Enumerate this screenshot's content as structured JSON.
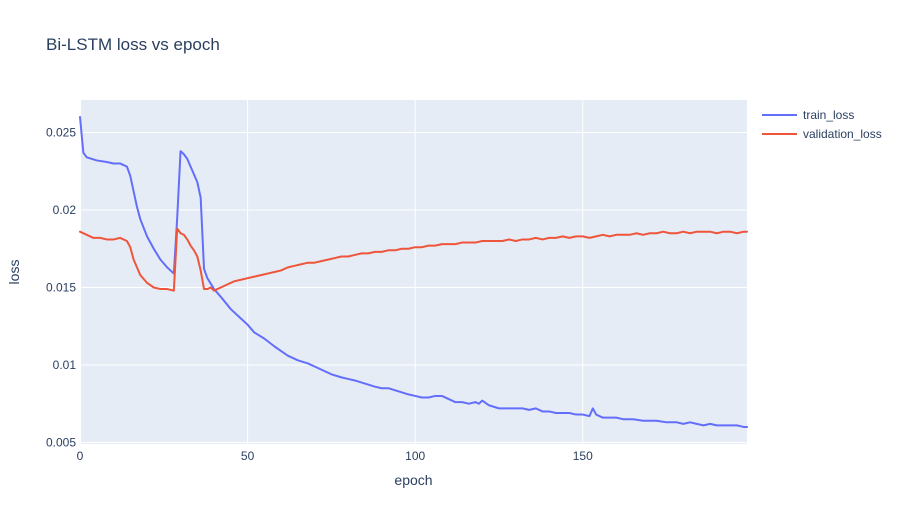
{
  "chart_data": {
    "type": "line",
    "title": "Bi-LSTM loss vs epoch",
    "xlabel": "epoch",
    "ylabel": "loss",
    "xlim": [
      0,
      199
    ],
    "ylim": [
      0.0049,
      0.0271
    ],
    "x_ticks": [
      0,
      50,
      100,
      150
    ],
    "x_tick_labels": [
      "0",
      "50",
      "100",
      "150"
    ],
    "y_ticks": [
      0.005,
      0.01,
      0.015,
      0.02,
      0.025
    ],
    "y_tick_labels": [
      "0.005",
      "0.01",
      "0.015",
      "0.02",
      "0.025"
    ],
    "grid": true,
    "legend_position": "top-right",
    "background": "#e5ecf6",
    "series": [
      {
        "name": "train_loss",
        "color": "#636efa",
        "x": [
          0,
          1,
          2,
          5,
          8,
          10,
          12,
          13,
          14,
          15,
          16,
          17,
          18,
          20,
          22,
          24,
          26,
          28,
          29,
          30,
          31,
          32,
          33,
          35,
          36,
          37,
          38,
          40,
          42,
          45,
          48,
          50,
          52,
          55,
          58,
          60,
          62,
          65,
          68,
          70,
          72,
          75,
          78,
          80,
          82,
          85,
          88,
          90,
          92,
          95,
          98,
          100,
          102,
          104,
          106,
          108,
          110,
          112,
          114,
          116,
          118,
          119,
          120,
          122,
          125,
          128,
          130,
          132,
          134,
          136,
          138,
          140,
          142,
          144,
          146,
          148,
          150,
          152,
          153,
          154,
          156,
          158,
          160,
          162,
          165,
          168,
          170,
          172,
          175,
          178,
          180,
          182,
          184,
          186,
          188,
          190,
          192,
          194,
          196,
          198,
          199
        ],
        "y": [
          0.026,
          0.0237,
          0.0234,
          0.0232,
          0.0231,
          0.023,
          0.023,
          0.0229,
          0.0228,
          0.0222,
          0.0212,
          0.0202,
          0.0194,
          0.0183,
          0.0175,
          0.0168,
          0.0163,
          0.0159,
          0.0195,
          0.0238,
          0.0236,
          0.0233,
          0.0228,
          0.0218,
          0.0208,
          0.0162,
          0.0156,
          0.0149,
          0.0144,
          0.0136,
          0.013,
          0.0126,
          0.0121,
          0.0117,
          0.0112,
          0.0109,
          0.0106,
          0.0103,
          0.0101,
          0.0099,
          0.0097,
          0.0094,
          0.0092,
          0.0091,
          0.009,
          0.0088,
          0.0086,
          0.0085,
          0.0085,
          0.0083,
          0.0081,
          0.008,
          0.0079,
          0.0079,
          0.008,
          0.008,
          0.0078,
          0.0076,
          0.0076,
          0.0075,
          0.0076,
          0.0075,
          0.0077,
          0.0074,
          0.0072,
          0.0072,
          0.0072,
          0.0072,
          0.0071,
          0.0072,
          0.007,
          0.007,
          0.0069,
          0.0069,
          0.0069,
          0.0068,
          0.0068,
          0.0067,
          0.0072,
          0.0068,
          0.0066,
          0.0066,
          0.0066,
          0.0065,
          0.0065,
          0.0064,
          0.0064,
          0.0064,
          0.0063,
          0.0063,
          0.0062,
          0.0063,
          0.0062,
          0.0061,
          0.0062,
          0.0061,
          0.0061,
          0.0061,
          0.0061,
          0.006,
          0.006
        ]
      },
      {
        "name": "validation_loss",
        "color": "#ef553b",
        "x": [
          0,
          2,
          4,
          6,
          8,
          10,
          12,
          14,
          15,
          16,
          17,
          18,
          20,
          22,
          24,
          26,
          28,
          29,
          30,
          31,
          32,
          33,
          34,
          35,
          36,
          37,
          38,
          39,
          40,
          42,
          44,
          46,
          48,
          50,
          52,
          54,
          56,
          58,
          60,
          62,
          64,
          66,
          68,
          70,
          72,
          74,
          76,
          78,
          80,
          82,
          84,
          86,
          88,
          90,
          92,
          94,
          96,
          98,
          100,
          102,
          104,
          106,
          108,
          110,
          112,
          114,
          116,
          118,
          120,
          122,
          124,
          126,
          128,
          130,
          132,
          134,
          136,
          138,
          140,
          142,
          144,
          146,
          148,
          150,
          152,
          154,
          156,
          158,
          160,
          162,
          164,
          166,
          168,
          170,
          172,
          174,
          176,
          178,
          180,
          182,
          184,
          186,
          188,
          190,
          192,
          194,
          196,
          198,
          199
        ],
        "y": [
          0.0186,
          0.0184,
          0.0182,
          0.0182,
          0.0181,
          0.0181,
          0.0182,
          0.018,
          0.0176,
          0.0168,
          0.0163,
          0.0158,
          0.0153,
          0.015,
          0.0149,
          0.0149,
          0.0148,
          0.0188,
          0.0185,
          0.0184,
          0.0181,
          0.0177,
          0.0174,
          0.017,
          0.0161,
          0.0149,
          0.0149,
          0.015,
          0.0148,
          0.015,
          0.0152,
          0.0154,
          0.0155,
          0.0156,
          0.0157,
          0.0158,
          0.0159,
          0.016,
          0.0161,
          0.0163,
          0.0164,
          0.0165,
          0.0166,
          0.0166,
          0.0167,
          0.0168,
          0.0169,
          0.017,
          0.017,
          0.0171,
          0.0172,
          0.0172,
          0.0173,
          0.0173,
          0.0174,
          0.0174,
          0.0175,
          0.0175,
          0.0176,
          0.0176,
          0.0177,
          0.0177,
          0.0178,
          0.0178,
          0.0178,
          0.0179,
          0.0179,
          0.0179,
          0.018,
          0.018,
          0.018,
          0.018,
          0.0181,
          0.018,
          0.0181,
          0.0181,
          0.0182,
          0.0181,
          0.0182,
          0.0182,
          0.0183,
          0.0182,
          0.0183,
          0.0183,
          0.0182,
          0.0183,
          0.0184,
          0.0183,
          0.0184,
          0.0184,
          0.0184,
          0.0185,
          0.0184,
          0.0185,
          0.0185,
          0.0186,
          0.0185,
          0.0185,
          0.0186,
          0.0185,
          0.0186,
          0.0186,
          0.0186,
          0.0185,
          0.0186,
          0.0186,
          0.0185,
          0.0186,
          0.0186
        ]
      }
    ]
  }
}
